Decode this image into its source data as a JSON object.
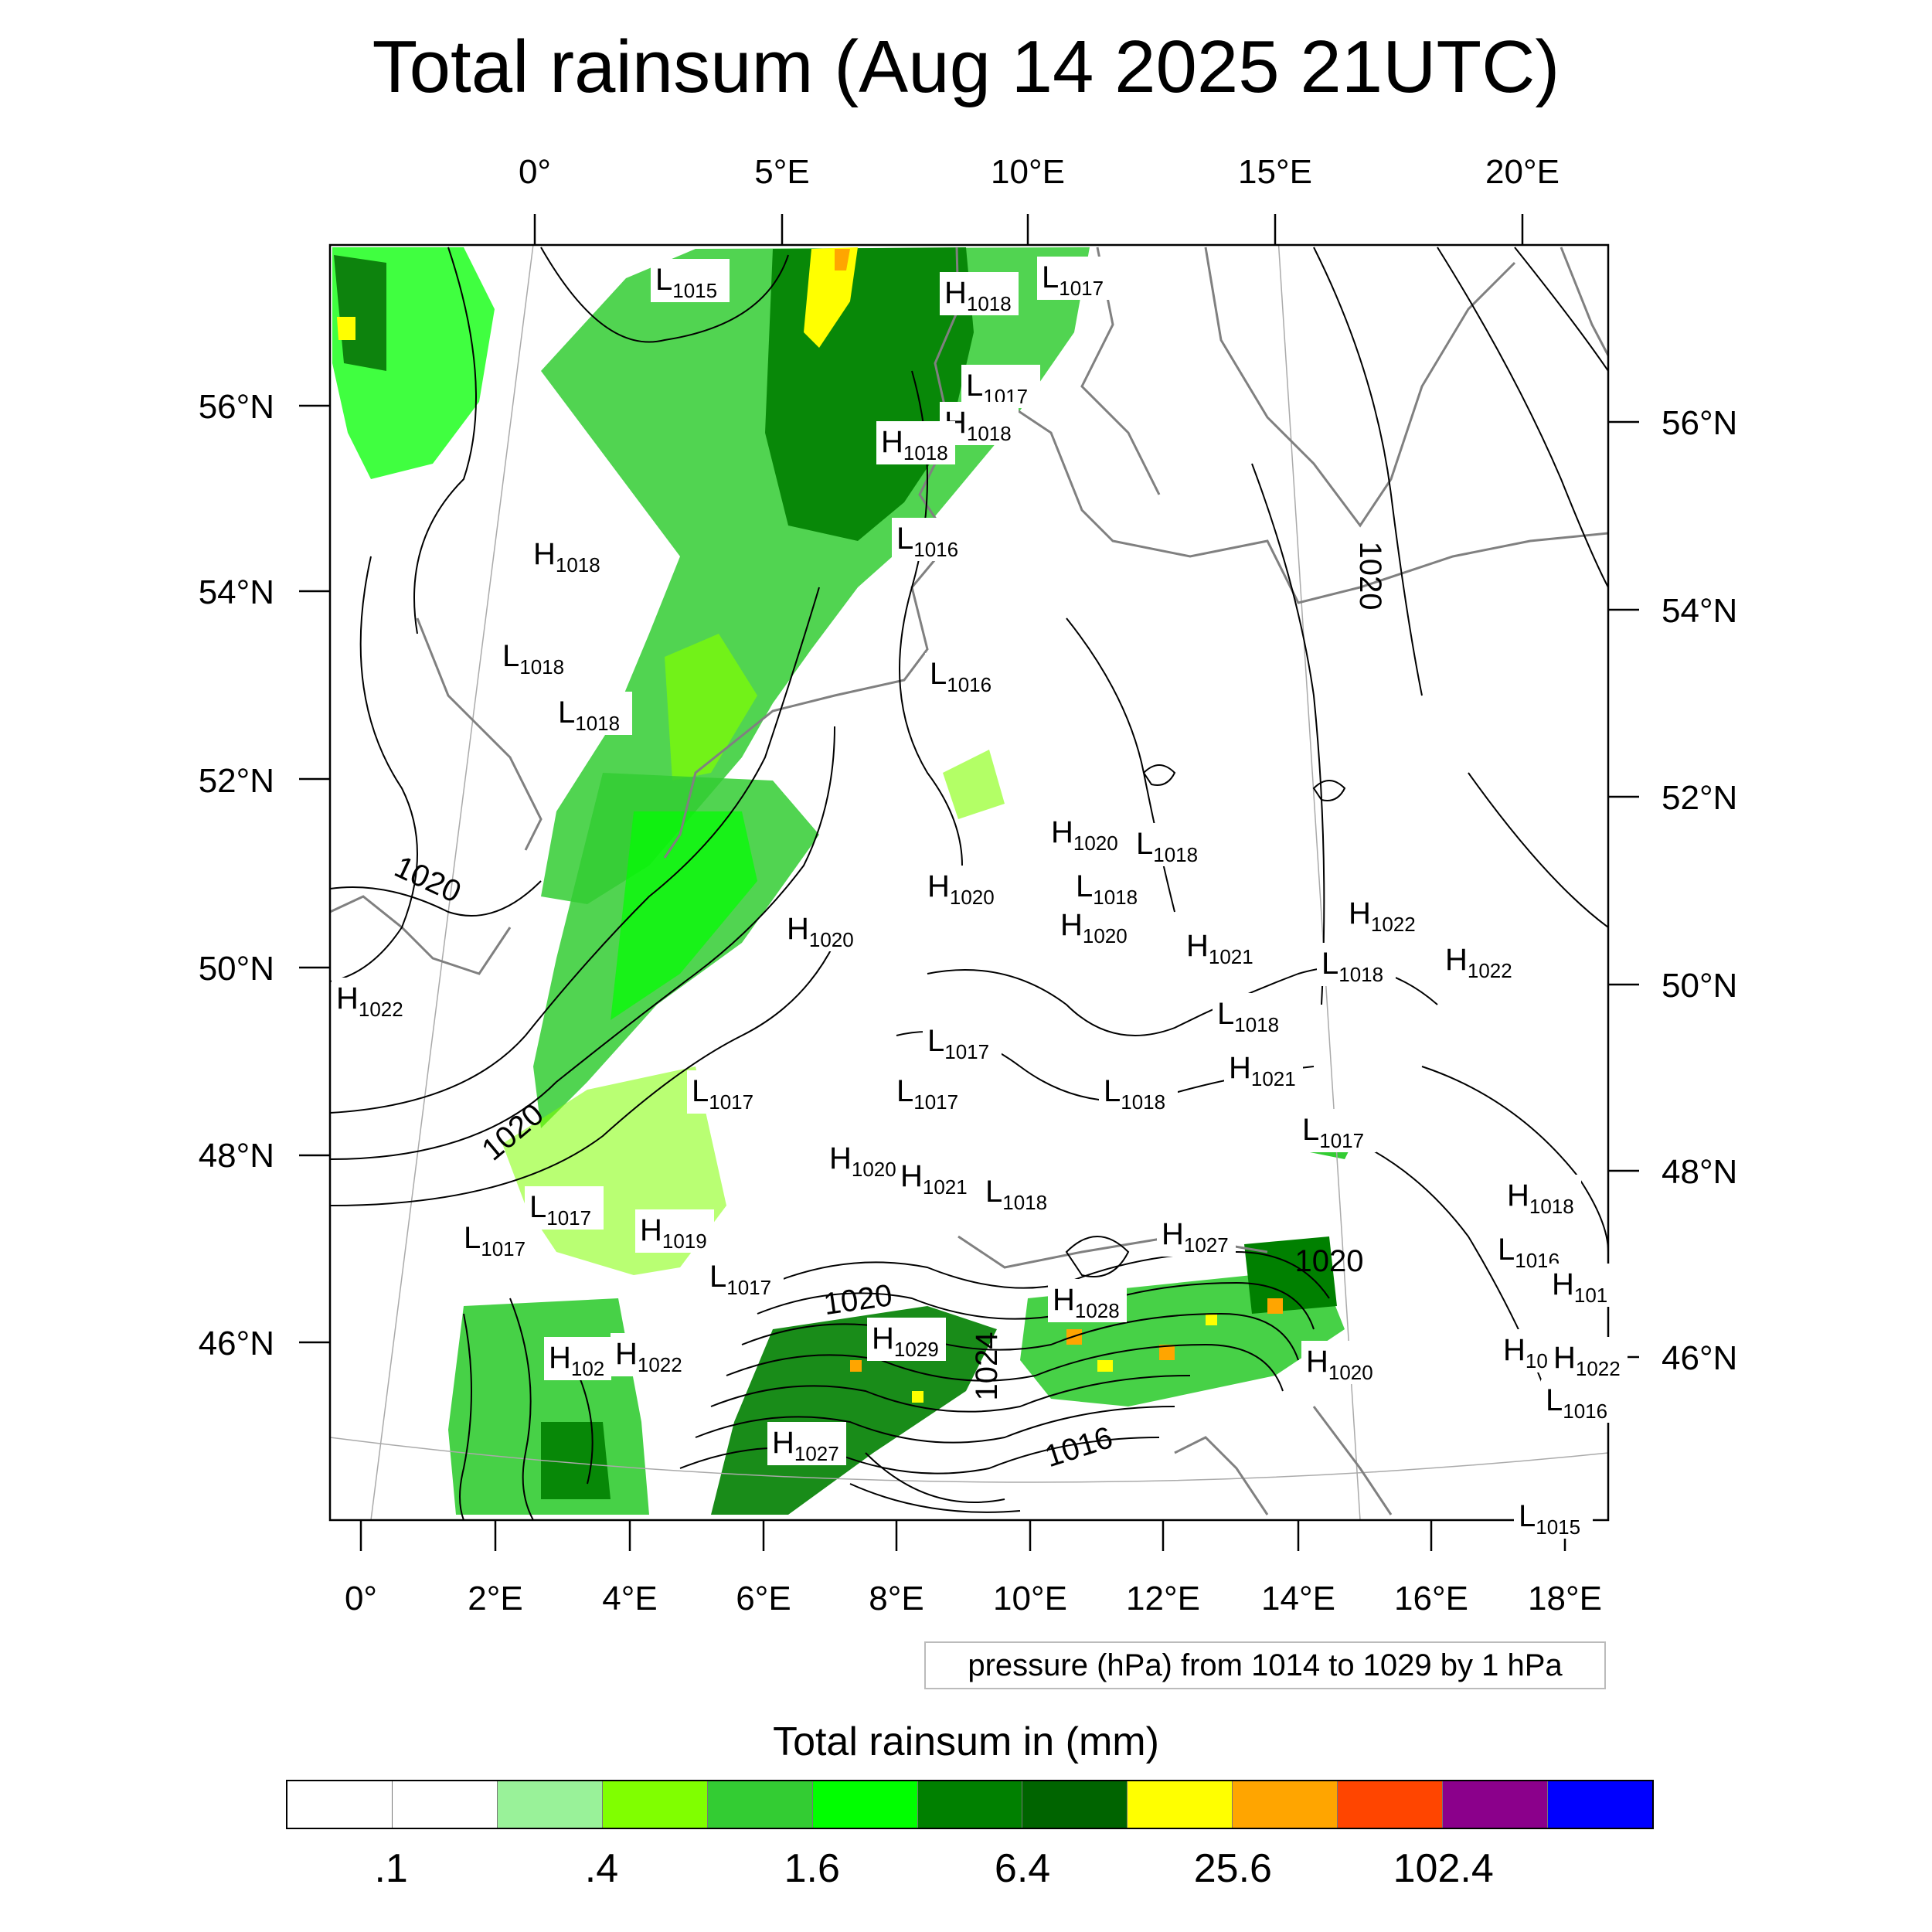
{
  "title": "Total rainsum (Aug 14 2025 21UTC)",
  "top_lon_labels": [
    "0°",
    "5°E",
    "10°E",
    "15°E",
    "20°E"
  ],
  "bottom_lon_labels": [
    "0°",
    "2°E",
    "4°E",
    "6°E",
    "8°E",
    "10°E",
    "12°E",
    "14°E",
    "16°E",
    "18°E"
  ],
  "left_lat_labels": [
    "56°N",
    "54°N",
    "52°N",
    "50°N",
    "48°N",
    "46°N"
  ],
  "right_lat_labels": [
    "56°N",
    "54°N",
    "52°N",
    "50°N",
    "48°N",
    "46°N"
  ],
  "pressure_centers": [
    {
      "type": "L",
      "value": "1015"
    },
    {
      "type": "H",
      "value": "1018"
    },
    {
      "type": "L",
      "value": "1017"
    },
    {
      "type": "L",
      "value": "1017"
    },
    {
      "type": "H",
      "value": "1018"
    },
    {
      "type": "H",
      "value": "1018"
    },
    {
      "type": "L",
      "value": "1016"
    },
    {
      "type": "H",
      "value": "1018"
    },
    {
      "type": "L",
      "value": "1018"
    },
    {
      "type": "L",
      "value": "1018"
    },
    {
      "type": "L",
      "value": "1016"
    },
    {
      "type": "H",
      "value": "1020"
    },
    {
      "type": "L",
      "value": "1018"
    },
    {
      "type": "H",
      "value": "1020"
    },
    {
      "type": "L",
      "value": "1018"
    },
    {
      "type": "H",
      "value": "1020"
    },
    {
      "type": "H",
      "value": "1020"
    },
    {
      "type": "H",
      "value": "1022"
    },
    {
      "type": "H",
      "value": "1021"
    },
    {
      "type": "L",
      "value": "1018"
    },
    {
      "type": "H",
      "value": "1022"
    },
    {
      "type": "H",
      "value": "1022"
    },
    {
      "type": "L",
      "value": "1018"
    },
    {
      "type": "L",
      "value": "1017"
    },
    {
      "type": "H",
      "value": "1021"
    },
    {
      "type": "L",
      "value": "1017"
    },
    {
      "type": "L",
      "value": "1017"
    },
    {
      "type": "L",
      "value": "1018"
    },
    {
      "type": "L",
      "value": "1017"
    },
    {
      "type": "H",
      "value": "1020"
    },
    {
      "type": "H",
      "value": "1021"
    },
    {
      "type": "L",
      "value": "1018"
    },
    {
      "type": "H",
      "value": "1018"
    },
    {
      "type": "L",
      "value": "1017"
    },
    {
      "type": "H",
      "value": "1019"
    },
    {
      "type": "L",
      "value": "1017"
    },
    {
      "type": "L",
      "value": "1017"
    },
    {
      "type": "H",
      "value": "1027"
    },
    {
      "type": "L",
      "value": "1016"
    },
    {
      "type": "H",
      "value": "1028"
    },
    {
      "type": "H",
      "value": "102"
    },
    {
      "type": "H",
      "value": "1022"
    },
    {
      "type": "H",
      "value": "1029"
    },
    {
      "type": "H",
      "value": "1018"
    },
    {
      "type": "H",
      "value": "1022"
    },
    {
      "type": "H",
      "value": "1020"
    },
    {
      "type": "L",
      "value": "1016"
    },
    {
      "type": "H",
      "value": "1027"
    },
    {
      "type": "L",
      "value": "1015"
    },
    {
      "type": "H",
      "value": "101"
    }
  ],
  "isobar_labels": [
    "1020",
    "1020",
    "1020",
    "1020",
    "1024",
    "1016",
    "1020"
  ],
  "pressure_note": "pressure (hPa) from 1014 to 1029 by 1 hPa",
  "colorbar": {
    "title": "Total rainsum in (mm)",
    "colors": [
      "#ffffff",
      "#ffffff",
      "#99f299",
      "#80ff00",
      "#33cc33",
      "#00ff00",
      "#008000",
      "#006400",
      "#ffff00",
      "#ffa500",
      "#ff4500",
      "#8b008b",
      "#0000ff"
    ],
    "labels": [
      ".1",
      ".4",
      "1.6",
      "6.4",
      "25.6",
      "102.4"
    ]
  }
}
